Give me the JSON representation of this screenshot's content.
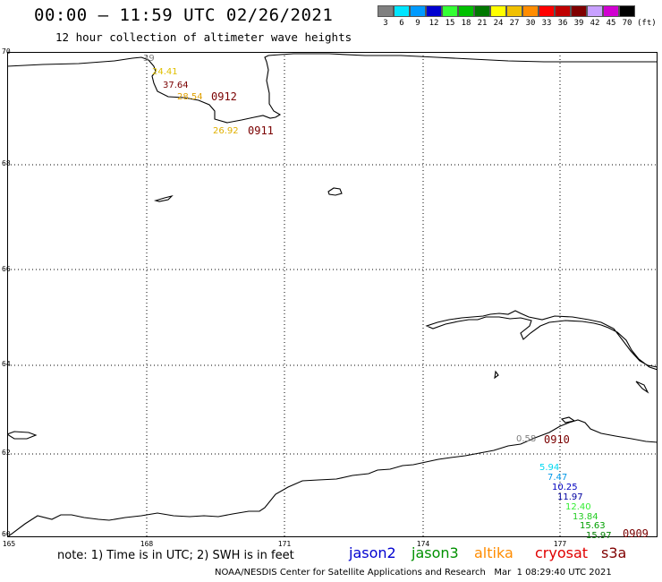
{
  "header": {
    "title": "00:00 – 11:59 UTC 02/26/2021",
    "subtitle": "12 hour collection of altimeter wave heights"
  },
  "legend": {
    "unit": "(ft)",
    "bins": [
      {
        "label": "3",
        "color": "#808080"
      },
      {
        "label": "6",
        "color": "#00e5ff"
      },
      {
        "label": "9",
        "color": "#009bff"
      },
      {
        "label": "12",
        "color": "#0000d0"
      },
      {
        "label": "15",
        "color": "#33ff33"
      },
      {
        "label": "18",
        "color": "#00c000"
      },
      {
        "label": "21",
        "color": "#007800"
      },
      {
        "label": "24",
        "color": "#ffff00"
      },
      {
        "label": "27",
        "color": "#f0c000"
      },
      {
        "label": "30",
        "color": "#ff8c00"
      },
      {
        "label": "33",
        "color": "#ff0000"
      },
      {
        "label": "36",
        "color": "#c00000"
      },
      {
        "label": "39",
        "color": "#800000"
      },
      {
        "label": "42",
        "color": "#c8a0ff"
      },
      {
        "label": "45",
        "color": "#d000d0"
      },
      {
        "label": "70",
        "color": "#000000"
      }
    ]
  },
  "axes": {
    "lat_labels": [
      "70",
      "68",
      "66",
      "64",
      "62",
      "60"
    ],
    "lon_labels": [
      "165",
      "168",
      "171",
      "174",
      "177"
    ]
  },
  "observations": [
    {
      "text": "39",
      "color": "#808080"
    },
    {
      "text": "24.41",
      "color": "#e0c000"
    },
    {
      "text": "37.64",
      "color": "#7a0000"
    },
    {
      "text": "28.54",
      "color": "#e0a000"
    },
    {
      "text": "26.92",
      "color": "#e0b000"
    },
    {
      "text": "0.58",
      "color": "#808080"
    },
    {
      "text": "5.94",
      "color": "#00d8f0"
    },
    {
      "text": "7.47",
      "color": "#0098e8"
    },
    {
      "text": "10.25",
      "color": "#0000c0"
    },
    {
      "text": "11.97",
      "color": "#0000a0"
    },
    {
      "text": "12.40",
      "color": "#33ee33"
    },
    {
      "text": "13.84",
      "color": "#22cc22"
    },
    {
      "text": "15.63",
      "color": "#00a000"
    },
    {
      "text": "15.97",
      "color": "#008000"
    }
  ],
  "passes": [
    "0912",
    "0911",
    "0910",
    "0909"
  ],
  "footer": {
    "note": "note: 1) Time is in UTC; 2) SWH is in feet",
    "satellites": [
      {
        "name": "jason2",
        "color": "#0000d0"
      },
      {
        "name": "jason3",
        "color": "#009000"
      },
      {
        "name": "altika",
        "color": "#ff8c00"
      },
      {
        "name": "cryosat",
        "color": "#e00000"
      },
      {
        "name": "s3a",
        "color": "#800000"
      }
    ],
    "credit": "NOAA/NESDIS Center for Satellite Applications and Research   Mar  1 08:29:40 UTC 2021"
  }
}
